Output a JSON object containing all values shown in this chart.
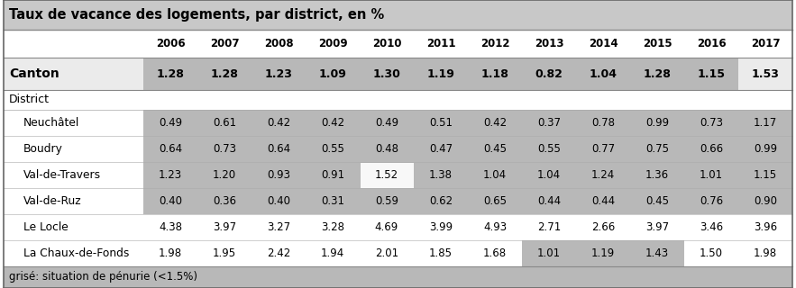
{
  "title": "Taux de vacance des logements, par district, en %",
  "years": [
    "2006",
    "2007",
    "2008",
    "2009",
    "2010",
    "2011",
    "2012",
    "2013",
    "2014",
    "2015",
    "2016",
    "2017"
  ],
  "canton_label": "Canton",
  "canton_values": [
    1.28,
    1.28,
    1.23,
    1.09,
    1.3,
    1.19,
    1.18,
    0.82,
    1.04,
    1.28,
    1.15,
    1.53
  ],
  "district_label": "District",
  "districts": [
    "Neuchâtel",
    "Boudry",
    "Val-de-Travers",
    "Val-de-Ruz",
    "Le Locle",
    "La Chaux-de-Fonds"
  ],
  "district_values": [
    [
      0.49,
      0.61,
      0.42,
      0.42,
      0.49,
      0.51,
      0.42,
      0.37,
      0.78,
      0.99,
      0.73,
      1.17
    ],
    [
      0.64,
      0.73,
      0.64,
      0.55,
      0.48,
      0.47,
      0.45,
      0.55,
      0.77,
      0.75,
      0.66,
      0.99
    ],
    [
      1.23,
      1.2,
      0.93,
      0.91,
      1.52,
      1.38,
      1.04,
      1.04,
      1.24,
      1.36,
      1.01,
      1.15
    ],
    [
      0.4,
      0.36,
      0.4,
      0.31,
      0.59,
      0.62,
      0.65,
      0.44,
      0.44,
      0.45,
      0.76,
      0.9
    ],
    [
      4.38,
      3.97,
      3.27,
      3.28,
      4.69,
      3.99,
      4.93,
      2.71,
      2.66,
      3.97,
      3.46,
      3.96
    ],
    [
      1.98,
      1.95,
      2.42,
      1.94,
      2.01,
      1.85,
      1.68,
      1.01,
      1.19,
      1.43,
      1.5,
      1.98
    ]
  ],
  "footnote": "grisé: situation de pénurie (<1.5%)",
  "threshold": 1.5,
  "bg_title": "#c8c8c8",
  "bg_gray": "#b8b8b8",
  "bg_header": "#f2f2f2",
  "bg_canton": "#ebebeb",
  "bg_white": "#ffffff",
  "bg_footnote": "#b8b8b8",
  "border_color": "#888888",
  "text_color": "#000000"
}
